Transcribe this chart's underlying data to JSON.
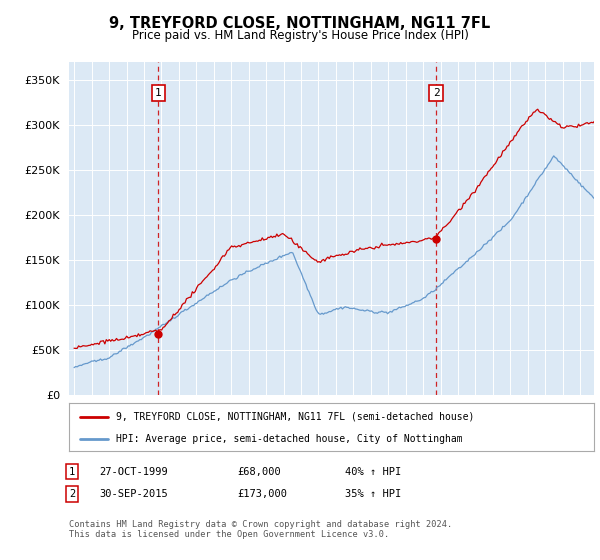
{
  "title_line1": "9, TREYFORD CLOSE, NOTTINGHAM, NG11 7FL",
  "title_line2": "Price paid vs. HM Land Registry's House Price Index (HPI)",
  "bg_color": "#dce9f5",
  "red_color": "#cc0000",
  "blue_color": "#6699cc",
  "legend1": "9, TREYFORD CLOSE, NOTTINGHAM, NG11 7FL (semi-detached house)",
  "legend2": "HPI: Average price, semi-detached house, City of Nottingham",
  "purchase1_date": "27-OCT-1999",
  "purchase1_price": 68000,
  "purchase1_hpi": "40% ↑ HPI",
  "purchase1_year": 1999.82,
  "purchase2_date": "30-SEP-2015",
  "purchase2_price": 173000,
  "purchase2_hpi": "35% ↑ HPI",
  "purchase2_year": 2015.75,
  "footer": "Contains HM Land Registry data © Crown copyright and database right 2024.\nThis data is licensed under the Open Government Licence v3.0.",
  "ylim": [
    0,
    370000
  ],
  "yticks": [
    0,
    50000,
    100000,
    150000,
    200000,
    250000,
    300000,
    350000
  ],
  "xlim_start": 1994.7,
  "xlim_end": 2024.8
}
